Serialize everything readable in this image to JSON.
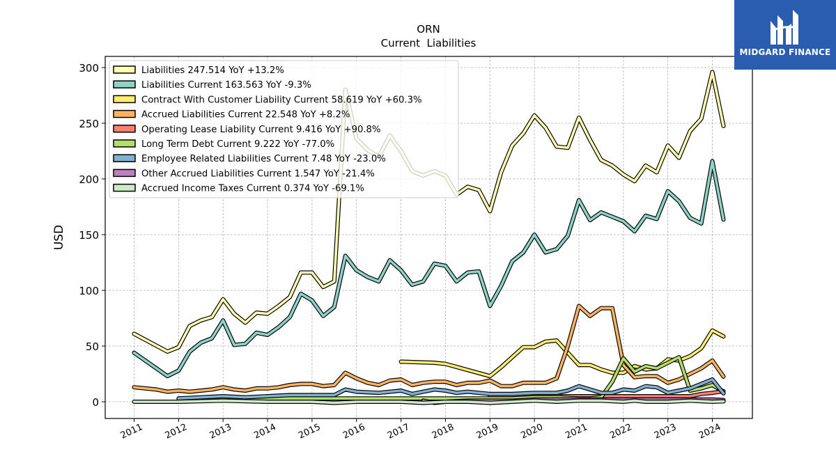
{
  "logo": {
    "text": "MIDGARD FINANCE"
  },
  "chart_data": {
    "type": "line",
    "title": "ORN",
    "subtitle": "Current  Liabilities",
    "ylabel": "USD",
    "xlabel": "",
    "ylim": [
      -15,
      310
    ],
    "xlim": [
      2010.35,
      2024.9
    ],
    "yticks": [
      0,
      50,
      100,
      150,
      200,
      250,
      300
    ],
    "xticks": [
      "2011",
      "2012",
      "2013",
      "2014",
      "2015",
      "2016",
      "2017",
      "2018",
      "2019",
      "2020",
      "2021",
      "2022",
      "2023",
      "2024"
    ],
    "grid": true,
    "legend_position": "top-left",
    "series": [
      {
        "name": "Liabilities",
        "legend": "Liabilities  247.514 YoY +13.2%",
        "color": "#ffffb3",
        "x": [
          2011.0,
          2011.75,
          2012.0,
          2012.25,
          2012.5,
          2012.75,
          2013.0,
          2013.25,
          2013.5,
          2013.75,
          2014.0,
          2014.25,
          2014.5,
          2014.75,
          2015.0,
          2015.25,
          2015.5,
          2015.75,
          2016.0,
          2016.25,
          2016.5,
          2016.75,
          2017.0,
          2017.25,
          2017.5,
          2017.75,
          2018.0,
          2018.25,
          2018.5,
          2018.75,
          2019.0,
          2019.25,
          2019.5,
          2019.75,
          2020.0,
          2020.25,
          2020.5,
          2020.75,
          2021.0,
          2021.25,
          2021.5,
          2021.75,
          2022.0,
          2022.25,
          2022.5,
          2022.75,
          2023.0,
          2023.25,
          2023.5,
          2023.75,
          2024.0,
          2024.25
        ],
        "y": [
          61,
          45,
          49,
          68,
          73,
          76,
          92,
          79,
          71,
          80,
          79,
          86,
          94,
          116,
          116,
          103,
          108,
          280,
          236,
          226,
          220,
          239,
          225,
          207,
          203,
          207,
          203,
          186,
          193,
          190,
          171,
          206,
          230,
          241,
          257,
          246,
          229,
          228,
          255,
          235,
          217,
          212,
          204,
          198,
          212,
          206,
          230,
          219,
          243,
          254,
          296,
          247.514
        ]
      },
      {
        "name": "Liabilities Current",
        "legend": "Liabilities Current  163.563 YoY -9.3%",
        "color": "#8dd3c7",
        "x": [
          2011.0,
          2011.75,
          2012.0,
          2012.25,
          2012.5,
          2012.75,
          2013.0,
          2013.25,
          2013.5,
          2013.75,
          2014.0,
          2014.25,
          2014.5,
          2014.75,
          2015.0,
          2015.25,
          2015.5,
          2015.75,
          2016.0,
          2016.25,
          2016.5,
          2016.75,
          2017.0,
          2017.25,
          2017.5,
          2017.75,
          2018.0,
          2018.25,
          2018.5,
          2018.75,
          2019.0,
          2019.25,
          2019.5,
          2019.75,
          2020.0,
          2020.25,
          2020.5,
          2020.75,
          2021.0,
          2021.25,
          2021.5,
          2021.75,
          2022.0,
          2022.25,
          2022.5,
          2022.75,
          2023.0,
          2023.25,
          2023.5,
          2023.75,
          2024.0,
          2024.25
        ],
        "y": [
          44,
          23,
          28,
          45,
          53,
          57,
          73,
          51,
          52,
          62,
          60,
          67,
          76,
          97,
          91,
          77,
          85,
          131,
          118,
          112,
          108,
          127,
          118,
          105,
          108,
          124,
          122,
          108,
          116,
          117,
          86,
          104,
          126,
          134,
          150,
          134,
          137,
          149,
          181,
          163,
          170,
          166,
          162,
          153,
          167,
          164,
          189,
          180,
          165,
          160,
          216,
          163.563
        ]
      },
      {
        "name": "Contract With Customer Liability Current",
        "legend": "Contract With Customer Liability Current  58.619 YoY +60.3%",
        "color": "#ffed6f",
        "x": [
          2017.0,
          2017.75,
          2018.0,
          2019.0,
          2019.25,
          2019.5,
          2019.75,
          2020.0,
          2020.25,
          2020.5,
          2020.75,
          2021.0,
          2021.25,
          2021.5,
          2021.75,
          2022.0,
          2022.25,
          2022.5,
          2022.75,
          2023.0,
          2023.25,
          2023.5,
          2023.75,
          2024.0,
          2024.25
        ],
        "y": [
          36,
          35,
          34,
          23,
          31,
          40,
          49,
          49,
          54,
          55,
          44,
          33,
          33,
          29,
          26,
          26,
          32,
          29,
          30,
          38,
          37,
          41,
          48,
          64,
          58.619
        ]
      },
      {
        "name": "Accrued Liabilities Current",
        "legend": "Accrued Liabilities Current  22.548 YoY +8.2%",
        "color": "#fdb462",
        "x": [
          2011.0,
          2011.5,
          2011.75,
          2012.0,
          2012.25,
          2012.5,
          2012.75,
          2013.0,
          2013.25,
          2013.5,
          2013.75,
          2014.0,
          2014.25,
          2014.5,
          2014.75,
          2015.0,
          2015.25,
          2015.5,
          2015.75,
          2016.0,
          2016.25,
          2016.5,
          2016.75,
          2017.0,
          2017.25,
          2017.5,
          2017.75,
          2018.0,
          2018.25,
          2018.5,
          2018.75,
          2019.0,
          2019.25,
          2019.5,
          2019.75,
          2020.0,
          2020.25,
          2020.5,
          2020.75,
          2021.0,
          2021.25,
          2021.5,
          2021.75,
          2022.0,
          2022.25,
          2022.5,
          2022.75,
          2023.0,
          2023.25,
          2023.5,
          2023.75,
          2024.0,
          2024.25
        ],
        "y": [
          13,
          11,
          9,
          10,
          9,
          10,
          11,
          13,
          11,
          10,
          12,
          12,
          13,
          15,
          16,
          16,
          14,
          15,
          26,
          21,
          17,
          15,
          19,
          20,
          15,
          17,
          18,
          18,
          15,
          17,
          17,
          19,
          14,
          14,
          17,
          17,
          17,
          21,
          50,
          86,
          77,
          84,
          84,
          33,
          22,
          23,
          23,
          17,
          20,
          25,
          30,
          37,
          22.548
        ]
      },
      {
        "name": "Operating Lease Liability Current",
        "legend": "Operating Lease Liability Current  9.416 YoY +90.8%",
        "color": "#fb8072",
        "x": [
          2019.0,
          2019.5,
          2020.0,
          2020.5,
          2021.0,
          2021.5,
          2022.0,
          2022.5,
          2023.0,
          2023.25,
          2023.5,
          2023.75,
          2024.0,
          2024.25
        ],
        "y": [
          5,
          5,
          5,
          5,
          5,
          5,
          5,
          5,
          5,
          5,
          5,
          7,
          8,
          9.416
        ]
      },
      {
        "name": "Long Term Debt Current",
        "legend": "Long Term Debt Current  9.222 YoY -77.0%",
        "color": "#b3de69",
        "x": [
          2012.0,
          2012.5,
          2013.0,
          2013.5,
          2014.0,
          2014.5,
          2015.0,
          2015.5,
          2016.0,
          2016.5,
          2017.0,
          2017.5,
          2018.0,
          2018.5,
          2019.0,
          2019.5,
          2020.0,
          2020.5,
          2021.0,
          2021.25,
          2021.5,
          2021.75,
          2022.0,
          2022.25,
          2022.5,
          2022.75,
          2023.0,
          2023.25,
          2023.5,
          2023.75,
          2024.0,
          2024.25
        ],
        "y": [
          3,
          3,
          3,
          3,
          3,
          3,
          3,
          3,
          3,
          3,
          3,
          3,
          3,
          3,
          3,
          3,
          4,
          4,
          3,
          3,
          4,
          18,
          39,
          27,
          32,
          30,
          35,
          40,
          10,
          12,
          15,
          9.222
        ]
      },
      {
        "name": "Employee Related Liabilities Current",
        "legend": "Employee Related Liabilities Current  7.48 YoY -23.0%",
        "color": "#80b1d3",
        "x": [
          2012.0,
          2012.5,
          2013.0,
          2013.5,
          2014.0,
          2014.5,
          2015.0,
          2015.5,
          2015.75,
          2016.0,
          2016.5,
          2017.0,
          2017.25,
          2017.5,
          2017.75,
          2018.0,
          2018.25,
          2018.5,
          2018.75,
          2019.0,
          2019.5,
          2020.0,
          2020.5,
          2020.75,
          2021.0,
          2021.25,
          2021.5,
          2021.75,
          2022.0,
          2022.25,
          2022.5,
          2022.75,
          2023.0,
          2023.25,
          2023.5,
          2023.75,
          2024.0,
          2024.25
        ],
        "y": [
          3,
          4,
          5,
          4,
          5,
          6,
          6,
          6,
          11,
          9,
          8,
          10,
          7,
          9,
          11,
          10,
          8,
          9,
          8,
          7,
          7,
          8,
          8,
          10,
          14,
          11,
          8,
          8,
          11,
          10,
          14,
          13,
          8,
          10,
          12,
          16,
          20,
          7.48
        ]
      },
      {
        "name": "Other Accrued Liabilities Current",
        "legend": "Other Accrued Liabilities Current  1.547 YoY -21.4%",
        "color": "#bc80bd",
        "x": [
          2017.5,
          2017.75,
          2018.0,
          2018.5,
          2019.0,
          2019.5,
          2020.0,
          2020.5,
          2021.0,
          2021.5,
          2022.0,
          2022.5,
          2023.0,
          2023.5,
          2024.0,
          2024.25
        ],
        "y": [
          1,
          -1,
          0,
          1,
          1,
          1,
          2,
          2,
          2,
          2,
          2,
          2,
          2,
          2,
          2,
          1.547
        ]
      },
      {
        "name": "Accrued Income Taxes Current",
        "legend": "Accrued Income Taxes Current  0.374 YoY -69.1%",
        "color": "#ccebc5",
        "x": [
          2011.0,
          2012.0,
          2013.0,
          2014.0,
          2015.0,
          2015.5,
          2016.0,
          2016.5,
          2017.0,
          2017.5,
          2018.0,
          2018.5,
          2019.0,
          2019.5,
          2020.0,
          2020.5,
          2021.0,
          2021.5,
          2022.0,
          2022.25,
          2022.5,
          2023.0,
          2023.5,
          2024.0,
          2024.25
        ],
        "y": [
          0,
          0,
          1,
          0,
          0,
          -1,
          0,
          0,
          0,
          -1,
          0,
          0,
          -1,
          0,
          1,
          0,
          1,
          1,
          0,
          1,
          0,
          0,
          1,
          0,
          0.374
        ]
      }
    ]
  }
}
